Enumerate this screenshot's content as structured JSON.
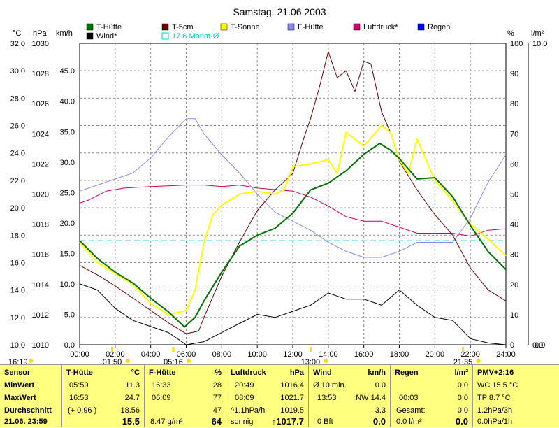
{
  "chart_data": {
    "type": "line",
    "title": "Samstag. 21.06.2003",
    "x_ticks": [
      "00:00",
      "02:00",
      "04:00",
      "06:00",
      "08:00",
      "10:00",
      "12:00",
      "14:00",
      "16:00",
      "18:00",
      "20:00",
      "22:00",
      "24:00"
    ],
    "xlim": [
      0,
      24
    ],
    "axes": {
      "celsius": {
        "label": "°C",
        "ticks": [
          "32.0",
          "30.0",
          "28.0",
          "26.0",
          "24.0",
          "22.0",
          "20.0",
          "18.0",
          "16.0",
          "14.0",
          "12.0",
          "10.0"
        ],
        "range": [
          10,
          32
        ]
      },
      "hpa": {
        "label": "hPa",
        "ticks": [
          "1030",
          "1028",
          "1026",
          "1024",
          "1022",
          "1020",
          "1018",
          "1016",
          "1014",
          "1012",
          "1010"
        ],
        "range": [
          1010,
          1030
        ]
      },
      "kmh": {
        "label": "km/h",
        "ticks": [
          "45.0",
          "40.0",
          "35.0",
          "30.0",
          "25.0",
          "20.0",
          "15.0",
          "10.0",
          "5.0",
          "0.0"
        ],
        "range": [
          0,
          49.5
        ]
      },
      "percent": {
        "label": "%",
        "ticks": [
          "100",
          "90",
          "80",
          "70",
          "60",
          "50",
          "40",
          "30",
          "20",
          "10",
          "0"
        ],
        "range": [
          0,
          100
        ]
      },
      "rain": {
        "label": "l/m²",
        "ticks": [
          "10.0",
          "0.0"
        ],
        "range": [
          0,
          10
        ]
      }
    },
    "legend_position": "top",
    "legend": [
      {
        "name": "T-Hütte",
        "color": "#007000"
      },
      {
        "name": "T-5cm",
        "color": "#6a0000"
      },
      {
        "name": "T-Sonne",
        "color": "#ffff00"
      },
      {
        "name": "F-Hütte",
        "color": "#8888ee"
      },
      {
        "name": "Luftdruck*",
        "color": "#cc0066"
      },
      {
        "name": "Regen",
        "color": "#0000ff"
      },
      {
        "name": "Wind*",
        "color": "#000000"
      },
      {
        "name": "17.6 Monat-Ø",
        "color": "#00cccc"
      }
    ],
    "series": [
      {
        "name": "T-Hütte",
        "axis": "celsius",
        "color": "#007000",
        "points": [
          [
            0,
            17.6
          ],
          [
            1,
            16.3
          ],
          [
            2,
            15.3
          ],
          [
            3,
            14.5
          ],
          [
            4,
            13.4
          ],
          [
            5,
            12.4
          ],
          [
            5.9,
            11.3
          ],
          [
            6.5,
            12.0
          ],
          [
            7,
            13.2
          ],
          [
            8,
            15.3
          ],
          [
            9,
            17.2
          ],
          [
            10,
            18.0
          ],
          [
            11,
            18.5
          ],
          [
            12,
            19.6
          ],
          [
            13,
            21.3
          ],
          [
            14,
            21.8
          ],
          [
            15,
            22.7
          ],
          [
            16,
            23.9
          ],
          [
            16.9,
            24.7
          ],
          [
            17.5,
            24.2
          ],
          [
            18,
            23.6
          ],
          [
            19,
            22.1
          ],
          [
            20,
            22.2
          ],
          [
            21,
            20.8
          ],
          [
            22,
            18.7
          ],
          [
            23,
            16.8
          ],
          [
            24,
            15.5
          ]
        ]
      },
      {
        "name": "T-5cm",
        "axis": "celsius",
        "color": "#6a0000",
        "points": [
          [
            0,
            15.8
          ],
          [
            1,
            15.1
          ],
          [
            2,
            14.3
          ],
          [
            3,
            13.4
          ],
          [
            4,
            12.5
          ],
          [
            5,
            11.6
          ],
          [
            6,
            10.8
          ],
          [
            6.7,
            11.0
          ],
          [
            7,
            12.0
          ],
          [
            8,
            15.0
          ],
          [
            9,
            17.5
          ],
          [
            10,
            19.8
          ],
          [
            11,
            21.3
          ],
          [
            12,
            22.5
          ],
          [
            12.6,
            25.0
          ],
          [
            13,
            26.5
          ],
          [
            13.5,
            28.8
          ],
          [
            14,
            31.4
          ],
          [
            14.5,
            29.5
          ],
          [
            15,
            30.0
          ],
          [
            15.5,
            28.5
          ],
          [
            16,
            30.7
          ],
          [
            16.4,
            30.5
          ],
          [
            17,
            27.0
          ],
          [
            17.5,
            25.5
          ],
          [
            18,
            23.4
          ],
          [
            19,
            21.3
          ],
          [
            20,
            19.5
          ],
          [
            21,
            18.0
          ],
          [
            22,
            15.6
          ],
          [
            23,
            14.0
          ],
          [
            24,
            13.2
          ]
        ]
      },
      {
        "name": "T-Sonne",
        "axis": "celsius",
        "color": "#ffff00",
        "points": [
          [
            0,
            17.5
          ],
          [
            1,
            16.0
          ],
          [
            2,
            15.2
          ],
          [
            3,
            14.4
          ],
          [
            4,
            13.0
          ],
          [
            5,
            12.2
          ],
          [
            6,
            12.5
          ],
          [
            6.5,
            14.0
          ],
          [
            7,
            17.5
          ],
          [
            7.5,
            19.5
          ],
          [
            8,
            20.2
          ],
          [
            9,
            21.0
          ],
          [
            10,
            21.2
          ],
          [
            11,
            21.0
          ],
          [
            11.5,
            21.3
          ],
          [
            12,
            23.0
          ],
          [
            13,
            23.2
          ],
          [
            14,
            23.5
          ],
          [
            14.5,
            22.5
          ],
          [
            15,
            25.5
          ],
          [
            16,
            24.5
          ],
          [
            17,
            26.0
          ],
          [
            17.5,
            25.5
          ],
          [
            18,
            23.5
          ],
          [
            18.5,
            22.5
          ],
          [
            19,
            25.0
          ],
          [
            20,
            22.0
          ],
          [
            21,
            20.5
          ],
          [
            22,
            18.8
          ],
          [
            23,
            17.7
          ],
          [
            24,
            16.5
          ]
        ]
      },
      {
        "name": "F-Hütte",
        "axis": "percent",
        "color": "#8888ee",
        "points": [
          [
            0,
            51
          ],
          [
            1,
            53
          ],
          [
            2,
            55
          ],
          [
            3,
            57
          ],
          [
            4,
            62
          ],
          [
            5,
            69
          ],
          [
            6,
            75
          ],
          [
            6.5,
            75
          ],
          [
            7,
            70
          ],
          [
            8,
            63
          ],
          [
            9,
            57
          ],
          [
            10,
            50
          ],
          [
            11,
            44
          ],
          [
            12,
            41
          ],
          [
            13,
            38
          ],
          [
            14,
            34
          ],
          [
            15,
            31
          ],
          [
            16,
            29
          ],
          [
            17,
            29
          ],
          [
            18,
            31
          ],
          [
            19,
            34
          ],
          [
            20,
            34
          ],
          [
            21,
            34
          ],
          [
            22,
            42
          ],
          [
            23,
            54
          ],
          [
            24,
            63
          ]
        ]
      },
      {
        "name": "Luftdruck*",
        "axis": "hpa",
        "color": "#cc0066",
        "points": [
          [
            0,
            1019.4
          ],
          [
            0.5,
            1019.6
          ],
          [
            1.5,
            1020.2
          ],
          [
            2.5,
            1020.4
          ],
          [
            4,
            1020.5
          ],
          [
            6,
            1020.6
          ],
          [
            7,
            1020.6
          ],
          [
            8,
            1020.5
          ],
          [
            9,
            1020.6
          ],
          [
            10,
            1020.4
          ],
          [
            11,
            1020.3
          ],
          [
            12,
            1020.2
          ],
          [
            13,
            1019.8
          ],
          [
            14,
            1019.2
          ],
          [
            15,
            1018.5
          ],
          [
            16,
            1018.2
          ],
          [
            17,
            1018.2
          ],
          [
            18,
            1017.8
          ],
          [
            19,
            1017.4
          ],
          [
            20,
            1017.4
          ],
          [
            21,
            1017.4
          ],
          [
            22,
            1017.2
          ],
          [
            23,
            1017.6
          ],
          [
            24,
            1017.7
          ]
        ]
      },
      {
        "name": "Wind*",
        "axis": "kmh",
        "color": "#000000",
        "points": [
          [
            0,
            10.0
          ],
          [
            1,
            9.0
          ],
          [
            2,
            6.0
          ],
          [
            3,
            4.0
          ],
          [
            4,
            3.0
          ],
          [
            5,
            2.0
          ],
          [
            5.5,
            1.0
          ],
          [
            6,
            0.0
          ],
          [
            7,
            0.5
          ],
          [
            8,
            2.0
          ],
          [
            9,
            3.5
          ],
          [
            10,
            5.0
          ],
          [
            11,
            4.5
          ],
          [
            12,
            5.5
          ],
          [
            13,
            6.5
          ],
          [
            14,
            8.5
          ],
          [
            15,
            7.5
          ],
          [
            16,
            7.5
          ],
          [
            17,
            6.5
          ],
          [
            18,
            9.0
          ],
          [
            19,
            6.5
          ],
          [
            20,
            4.5
          ],
          [
            21,
            4.0
          ],
          [
            22,
            1.0
          ],
          [
            23,
            0.3
          ],
          [
            24,
            0.0
          ]
        ]
      },
      {
        "name": "17.6 Monat-Ø",
        "axis": "celsius",
        "color": "#00cccc",
        "dashed": true,
        "points": [
          [
            0,
            17.6
          ],
          [
            24,
            17.6
          ]
        ]
      }
    ],
    "time_markers": [
      {
        "label": "16:19",
        "at": "left"
      },
      {
        "label": "01:50",
        "at": 1.83
      },
      {
        "label": "05:16",
        "at": 5.27
      },
      {
        "label": "13:00",
        "at": 13.0
      },
      {
        "label": "21:35",
        "at": 21.58
      }
    ],
    "rain_readout": "0.0"
  },
  "summary": {
    "sensor": {
      "title": "Sensor",
      "rows": [
        "MinWert",
        "MaxWert",
        "Durchschnitt",
        "21.06. 23:59"
      ]
    },
    "t_huette": {
      "title": "T-Hütte",
      "unit": "°C",
      "rows": [
        [
          "05:59",
          "11.3"
        ],
        [
          "16:53",
          "24.7"
        ],
        [
          "(+ 0.96 )",
          "18.56"
        ],
        [
          "",
          "15.5"
        ]
      ]
    },
    "f_huette": {
      "title": "F-Hütte",
      "unit": "%",
      "rows": [
        [
          "16:33",
          "28"
        ],
        [
          "06:09",
          "77"
        ],
        [
          "",
          "47"
        ],
        [
          "8.47 g/m³",
          "64"
        ]
      ]
    },
    "luftdruck": {
      "title": "Luftdruck",
      "unit": "hPa",
      "rows": [
        [
          "20:49",
          "1016.4"
        ],
        [
          "08:09",
          "1021.7"
        ],
        [
          "^1.1hPa/h",
          "1019.5"
        ],
        [
          "sonnig",
          "↑1017.7"
        ]
      ]
    },
    "wind": {
      "title": "Wind",
      "unit": "km/h",
      "rows": [
        [
          "Ø 10 min.",
          "0.0"
        ],
        [
          "13:53",
          "NW 14.4"
        ],
        [
          "",
          "3.3"
        ],
        [
          "0 Bft",
          "0.0"
        ]
      ]
    },
    "regen": {
      "title": "Regen",
      "unit": "l/m²",
      "rows": [
        [
          "",
          "0.0"
        ],
        [
          "00:03",
          "0.0"
        ],
        [
          "Gesamt:",
          "0.0"
        ],
        [
          "0.0 l/m²",
          "0.0"
        ]
      ]
    },
    "pmv": {
      "title": "PMV+2:16",
      "rows": [
        "WC 15.5 °C",
        "TP 8.7 °C",
        "1.2hPa/3h",
        "0.0hPa/1h"
      ]
    }
  }
}
